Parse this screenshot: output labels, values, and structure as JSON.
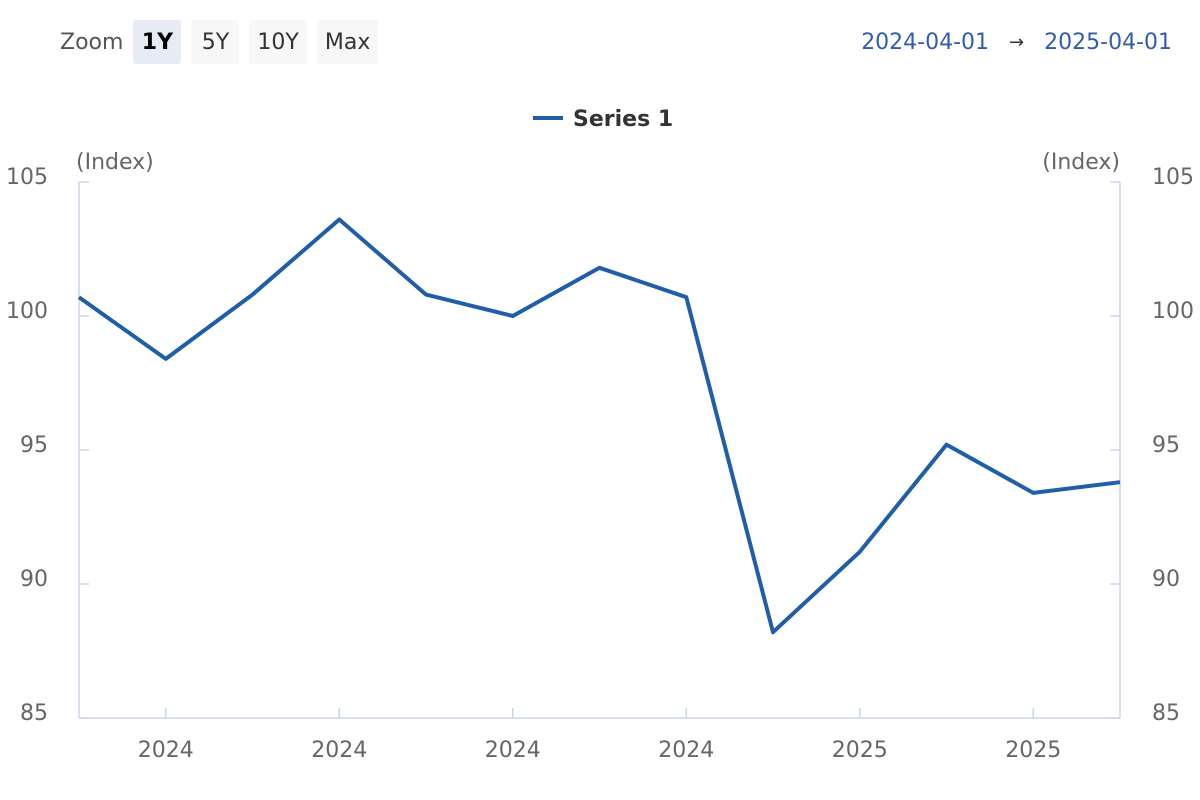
{
  "toolbar": {
    "zoom_label": "Zoom",
    "buttons": [
      "1Y",
      "5Y",
      "10Y",
      "Max"
    ],
    "active": "1Y",
    "range_from": "2024-04-01",
    "range_arrow": "→",
    "range_to": "2025-04-01"
  },
  "colors": {
    "series": "#1f5ea8",
    "axis": "#ccd6eb",
    "active_button": "#e6ebf5"
  },
  "chart_data": {
    "type": "line",
    "legend_position": "top-center",
    "y_unit_left": "(Index)",
    "y_unit_right": "(Index)",
    "ylim": [
      85,
      105
    ],
    "yticks": [
      85,
      90,
      95,
      100,
      105
    ],
    "xticks": [
      "2024",
      "2024",
      "2024",
      "2024",
      "2025",
      "2025"
    ],
    "grid": false,
    "series": [
      {
        "name": "Series 1",
        "values": [
          100.7,
          98.4,
          100.8,
          103.6,
          100.8,
          100.0,
          101.8,
          100.7,
          88.2,
          91.2,
          95.2,
          93.4,
          93.8
        ]
      }
    ]
  }
}
